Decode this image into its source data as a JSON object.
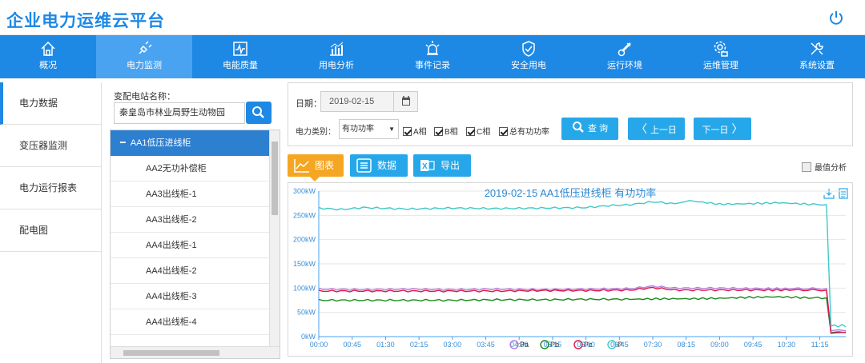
{
  "app": {
    "title": "企业电力运维云平台"
  },
  "nav": {
    "items": [
      {
        "label": "概况",
        "icon": "home-icon"
      },
      {
        "label": "电力监测",
        "icon": "plug-icon"
      },
      {
        "label": "电能质量",
        "icon": "waveform-icon"
      },
      {
        "label": "用电分析",
        "icon": "bar-analysis-icon"
      },
      {
        "label": "事件记录",
        "icon": "alarm-light-icon"
      },
      {
        "label": "安全用电",
        "icon": "shield-check-icon"
      },
      {
        "label": "运行环境",
        "icon": "thermometer-icon"
      },
      {
        "label": "运维管理",
        "icon": "gear-tool-icon"
      },
      {
        "label": "系统设置",
        "icon": "wrench-icon"
      }
    ],
    "active_index": 1
  },
  "sidebar": {
    "items": [
      {
        "label": "电力数据"
      },
      {
        "label": "变压器监测"
      },
      {
        "label": "电力运行报表"
      },
      {
        "label": "配电图"
      }
    ],
    "active_index": 0
  },
  "station": {
    "label": "变配电站名称：",
    "value": "秦皇岛市林业局野生动物园",
    "tree_head": "AA1低压进线柜",
    "tree_items": [
      "AA2无功补偿柜",
      "AA3出线柜-1",
      "AA3出线柜-2",
      "AA4出线柜-1",
      "AA4出线柜-2",
      "AA4出线柜-3",
      "AA4出线柜-4"
    ]
  },
  "filters": {
    "date_label": "日期：",
    "date_value": "2019-02-15",
    "type_label": "电力类别：",
    "type_value": "有功功率",
    "checkboxes": [
      "A相",
      "B相",
      "C相",
      "总有功功率"
    ],
    "query_label": "查 询",
    "prev_label": "上一日",
    "next_label": "下一日"
  },
  "tabs": {
    "chart": "图表",
    "data": "数据",
    "export": "导出",
    "peak_analysis": "最值分析"
  },
  "colors": {
    "primary": "#1e88e5",
    "button": "#26a7ea",
    "tab_active": "#f5a623",
    "series_pa": "#b57edc",
    "series_pb": "#1a8a1a",
    "series_pc": "#e0144c",
    "series_p": "#3fc8c8"
  },
  "chart_data": {
    "type": "line",
    "title": "2019-02-15  AA1低压进线柜  有功功率",
    "x_ticks": [
      "00:00",
      "00:45",
      "01:30",
      "02:15",
      "03:00",
      "03:45",
      "04:30",
      "05:15",
      "06:00",
      "06:45",
      "07:30",
      "08:15",
      "09:00",
      "09:45",
      "10:30",
      "11:15"
    ],
    "y_ticks": [
      "0kW",
      "50kW",
      "100kW",
      "150kW",
      "200kW",
      "250kW",
      "300kW"
    ],
    "ylim": [
      0,
      300
    ],
    "x_range_minutes": [
      0,
      710
    ],
    "x_unit": "minutes since 00:00",
    "series": [
      {
        "name": "Pa",
        "color": "#b57edc",
        "points": [
          [
            0,
            98
          ],
          [
            60,
            97
          ],
          [
            120,
            98
          ],
          [
            180,
            97
          ],
          [
            240,
            98
          ],
          [
            300,
            97
          ],
          [
            360,
            98
          ],
          [
            420,
            99
          ],
          [
            450,
            104
          ],
          [
            480,
            100
          ],
          [
            540,
            100
          ],
          [
            600,
            99
          ],
          [
            640,
            99
          ],
          [
            684,
            99
          ],
          [
            690,
            12
          ],
          [
            700,
            14
          ],
          [
            710,
            12
          ]
        ]
      },
      {
        "name": "Pb",
        "color": "#1a8a1a",
        "points": [
          [
            0,
            75
          ],
          [
            60,
            75
          ],
          [
            120,
            75
          ],
          [
            180,
            75
          ],
          [
            240,
            76
          ],
          [
            300,
            76
          ],
          [
            360,
            77
          ],
          [
            420,
            77
          ],
          [
            460,
            78
          ],
          [
            500,
            78
          ],
          [
            540,
            79
          ],
          [
            580,
            81
          ],
          [
            620,
            82
          ],
          [
            660,
            80
          ],
          [
            684,
            80
          ],
          [
            690,
            8
          ],
          [
            700,
            10
          ],
          [
            710,
            8
          ]
        ]
      },
      {
        "name": "Pc",
        "color": "#e0144c",
        "points": [
          [
            0,
            94
          ],
          [
            60,
            94
          ],
          [
            120,
            94
          ],
          [
            180,
            94
          ],
          [
            240,
            94
          ],
          [
            300,
            95
          ],
          [
            360,
            95
          ],
          [
            420,
            96
          ],
          [
            450,
            101
          ],
          [
            480,
            96
          ],
          [
            540,
            96
          ],
          [
            600,
            96
          ],
          [
            640,
            96
          ],
          [
            684,
            96
          ],
          [
            690,
            7
          ],
          [
            700,
            8
          ],
          [
            710,
            9
          ]
        ]
      },
      {
        "name": "P",
        "color": "#3fc8c8",
        "points": [
          [
            0,
            265
          ],
          [
            30,
            262
          ],
          [
            60,
            266
          ],
          [
            120,
            263
          ],
          [
            180,
            265
          ],
          [
            240,
            264
          ],
          [
            300,
            265
          ],
          [
            360,
            266
          ],
          [
            390,
            270
          ],
          [
            420,
            272
          ],
          [
            450,
            278
          ],
          [
            480,
            274
          ],
          [
            500,
            280
          ],
          [
            540,
            273
          ],
          [
            580,
            274
          ],
          [
            620,
            276
          ],
          [
            660,
            273
          ],
          [
            684,
            272
          ],
          [
            690,
            22
          ],
          [
            695,
            24
          ],
          [
            700,
            20
          ],
          [
            705,
            25
          ],
          [
            710,
            20
          ]
        ]
      }
    ]
  }
}
